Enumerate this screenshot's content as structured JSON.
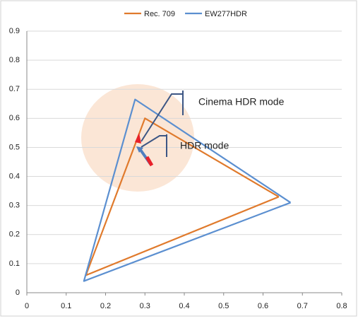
{
  "chart_data": {
    "type": "line",
    "series": [
      {
        "name": "Rec. 709",
        "color": "#e07a2c",
        "x": [
          0.64,
          0.3,
          0.15,
          0.64
        ],
        "values": [
          0.33,
          0.6,
          0.06,
          0.33
        ]
      },
      {
        "name": "EW277HDR",
        "color": "#5b8fd0",
        "x": [
          0.67,
          0.275,
          0.145,
          0.67
        ],
        "values": [
          0.31,
          0.665,
          0.04,
          0.31
        ]
      }
    ],
    "xlim": [
      0,
      0.8
    ],
    "xticks": [
      0,
      0.1,
      0.2,
      0.3,
      0.4,
      0.5,
      0.6,
      0.7,
      0.8
    ],
    "ylim": [
      0,
      0.9
    ],
    "yticks": [
      0,
      0.1,
      0.2,
      0.3,
      0.4,
      0.5,
      0.6,
      0.7,
      0.8,
      0.9
    ],
    "grid": true,
    "legend": "top",
    "annotations": [
      {
        "text": "Cinema HDR mode"
      },
      {
        "text": "HDR mode"
      }
    ]
  }
}
